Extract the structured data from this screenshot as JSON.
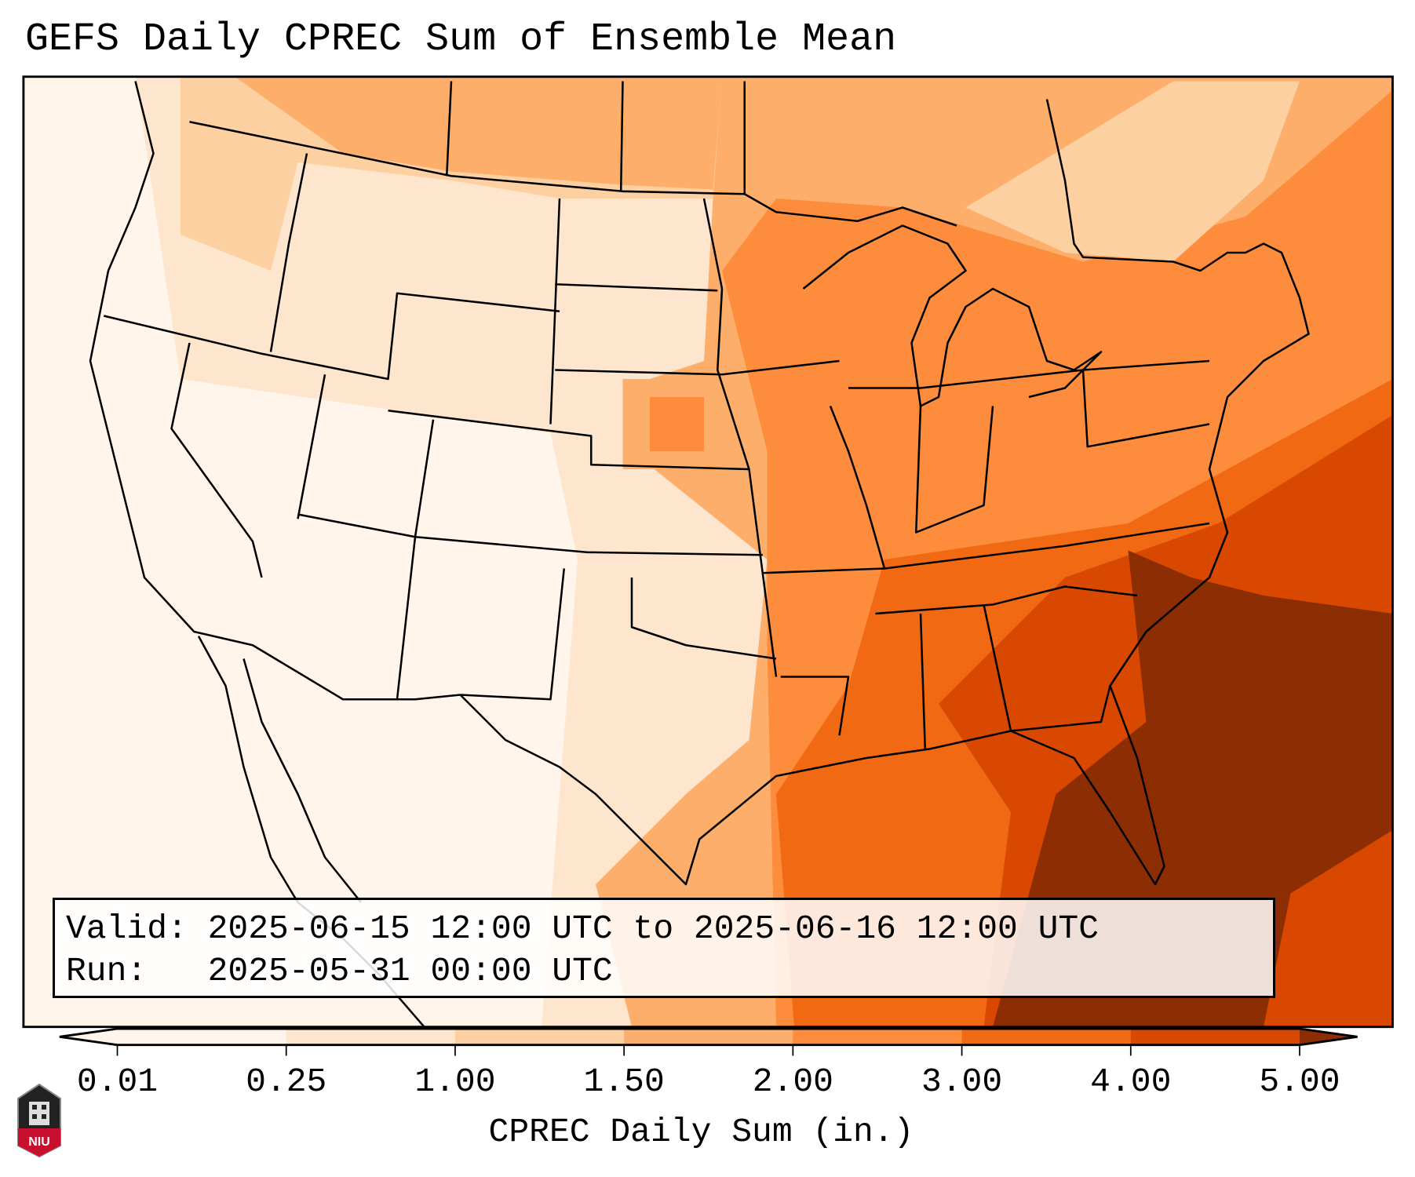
{
  "title": "GEFS Daily CPREC Sum of Ensemble Mean",
  "info": {
    "valid_line": "Valid: 2025-06-15 12:00 UTC to 2025-06-16 12:00 UTC",
    "run_line": "Run:   2025-05-31 00:00 UTC"
  },
  "colorbar": {
    "label": "CPREC Daily Sum (in.)",
    "ticks": [
      "0.01",
      "0.25",
      "1.00",
      "1.50",
      "2.00",
      "3.00",
      "4.00",
      "5.00"
    ],
    "colors": [
      "#fff5eb",
      "#fee6ce",
      "#fdd0a2",
      "#fdae6b",
      "#fd8d3c",
      "#f16913",
      "#d94801",
      "#8c2d04"
    ],
    "extend": "both"
  },
  "logo": {
    "text": "NIU"
  }
}
